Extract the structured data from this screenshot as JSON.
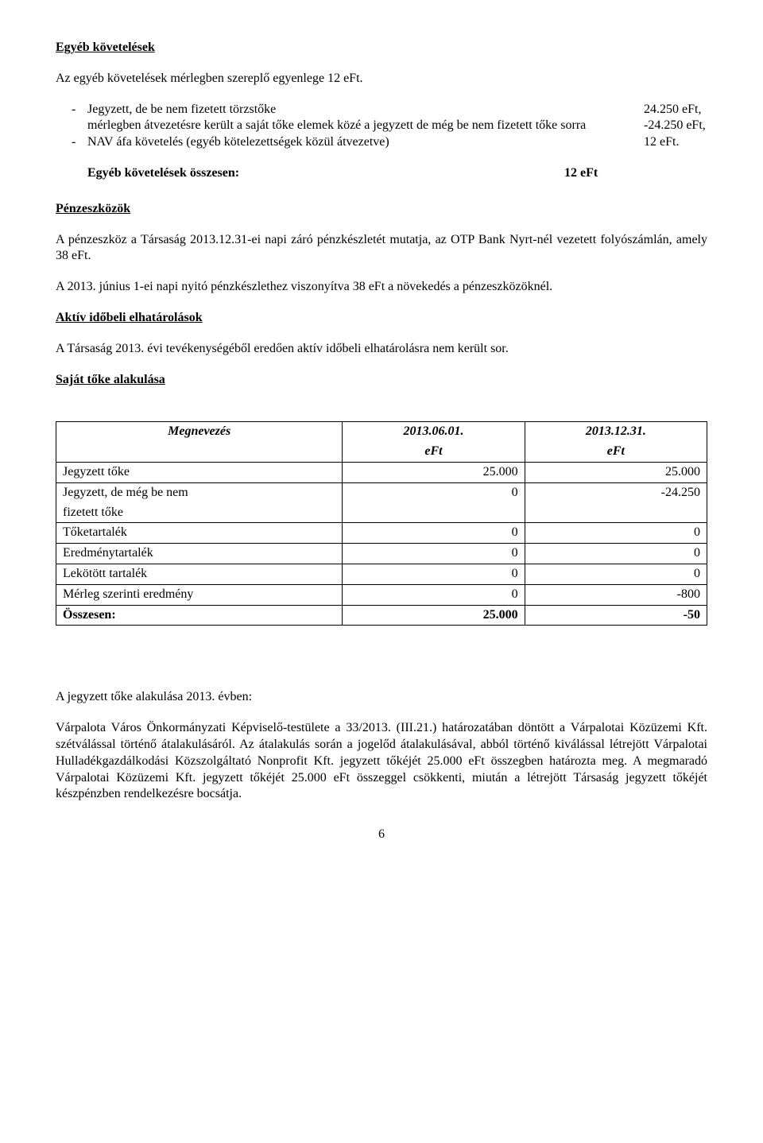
{
  "h1": "Egyéb követelések",
  "p1": "Az egyéb követelések mérlegben szereplő egyenlege 12 eFt.",
  "list1": {
    "item1_label": "Jegyzett, de be nem fizetett törzstőke",
    "item1_value": "24.250 eFt,",
    "item1_cont_label": "mérlegben átvezetésre került a saját tőke elemek közé a jegyzett de még be nem fizetett tőke sorra",
    "item1_cont_value": "-24.250 eFt,",
    "item2_label": "NAV áfa követelés (egyéb kötelezettségek közül átvezetve)",
    "item2_value": "12 eFt."
  },
  "summary1_label": "Egyéb követelések összesen:",
  "summary1_value": "12 eFt",
  "h2": "Pénzeszközök",
  "p2": "A pénzeszköz a Társaság 2013.12.31-ei napi záró pénzkészletét mutatja, az OTP Bank Nyrt-nél vezetett folyószámlán, amely 38 eFt.",
  "p3": "A 2013. június 1-ei napi nyitó pénzkészlethez viszonyítva 38 eFt a növekedés a pénzeszközöknél.",
  "h3": "Aktív időbeli elhatárolások",
  "p4": "A Társaság  2013. évi tevékenységéből eredően aktív időbeli elhatárolásra nem került sor.",
  "h4": "Saját tőke alakulása",
  "table": {
    "columns": [
      "Megnevezés",
      "2013.06.01.",
      "2013.12.31."
    ],
    "unit_row": [
      "",
      "eFt",
      "eFt"
    ],
    "rows": [
      [
        "Jegyzett tőke",
        "25.000",
        "25.000"
      ],
      [
        "Jegyzett, de még be nem fizetett tőke",
        "0",
        "-24.250"
      ],
      [
        "Tőketartalék",
        "0",
        "0"
      ],
      [
        "Eredménytartalék",
        "0",
        "0"
      ],
      [
        "Lekötött tartalék",
        "0",
        "0"
      ],
      [
        "Mérleg szerinti eredmény",
        "0",
        "-800"
      ],
      [
        "Összesen:",
        "25.000",
        "-50"
      ]
    ]
  },
  "p5": "A jegyzett tőke alakulása 2013. évben:",
  "p6": "Várpalota Város Önkormányzati Képviselő-testülete a 33/2013. (III.21.) határozatában döntött a Várpalotai Közüzemi Kft. szétválással történő átalakulásáról. Az átalakulás során a jogelőd átalakulásával, abból történő kiválással létrejött Várpalotai Hulladékgazdálkodási Közszolgáltató Nonprofit Kft. jegyzett tőkéjét 25.000 eFt összegben határozta meg. A megmaradó Várpalotai Közüzemi Kft. jegyzett tőkéjét 25.000 eFt összeggel csökkenti, miután a létrejött Társaság jegyzett tőkéjét készpénzben rendelkezésre bocsátja.",
  "page_number": "6",
  "colors": {
    "text": "#000000",
    "background": "#ffffff",
    "border": "#000000"
  }
}
